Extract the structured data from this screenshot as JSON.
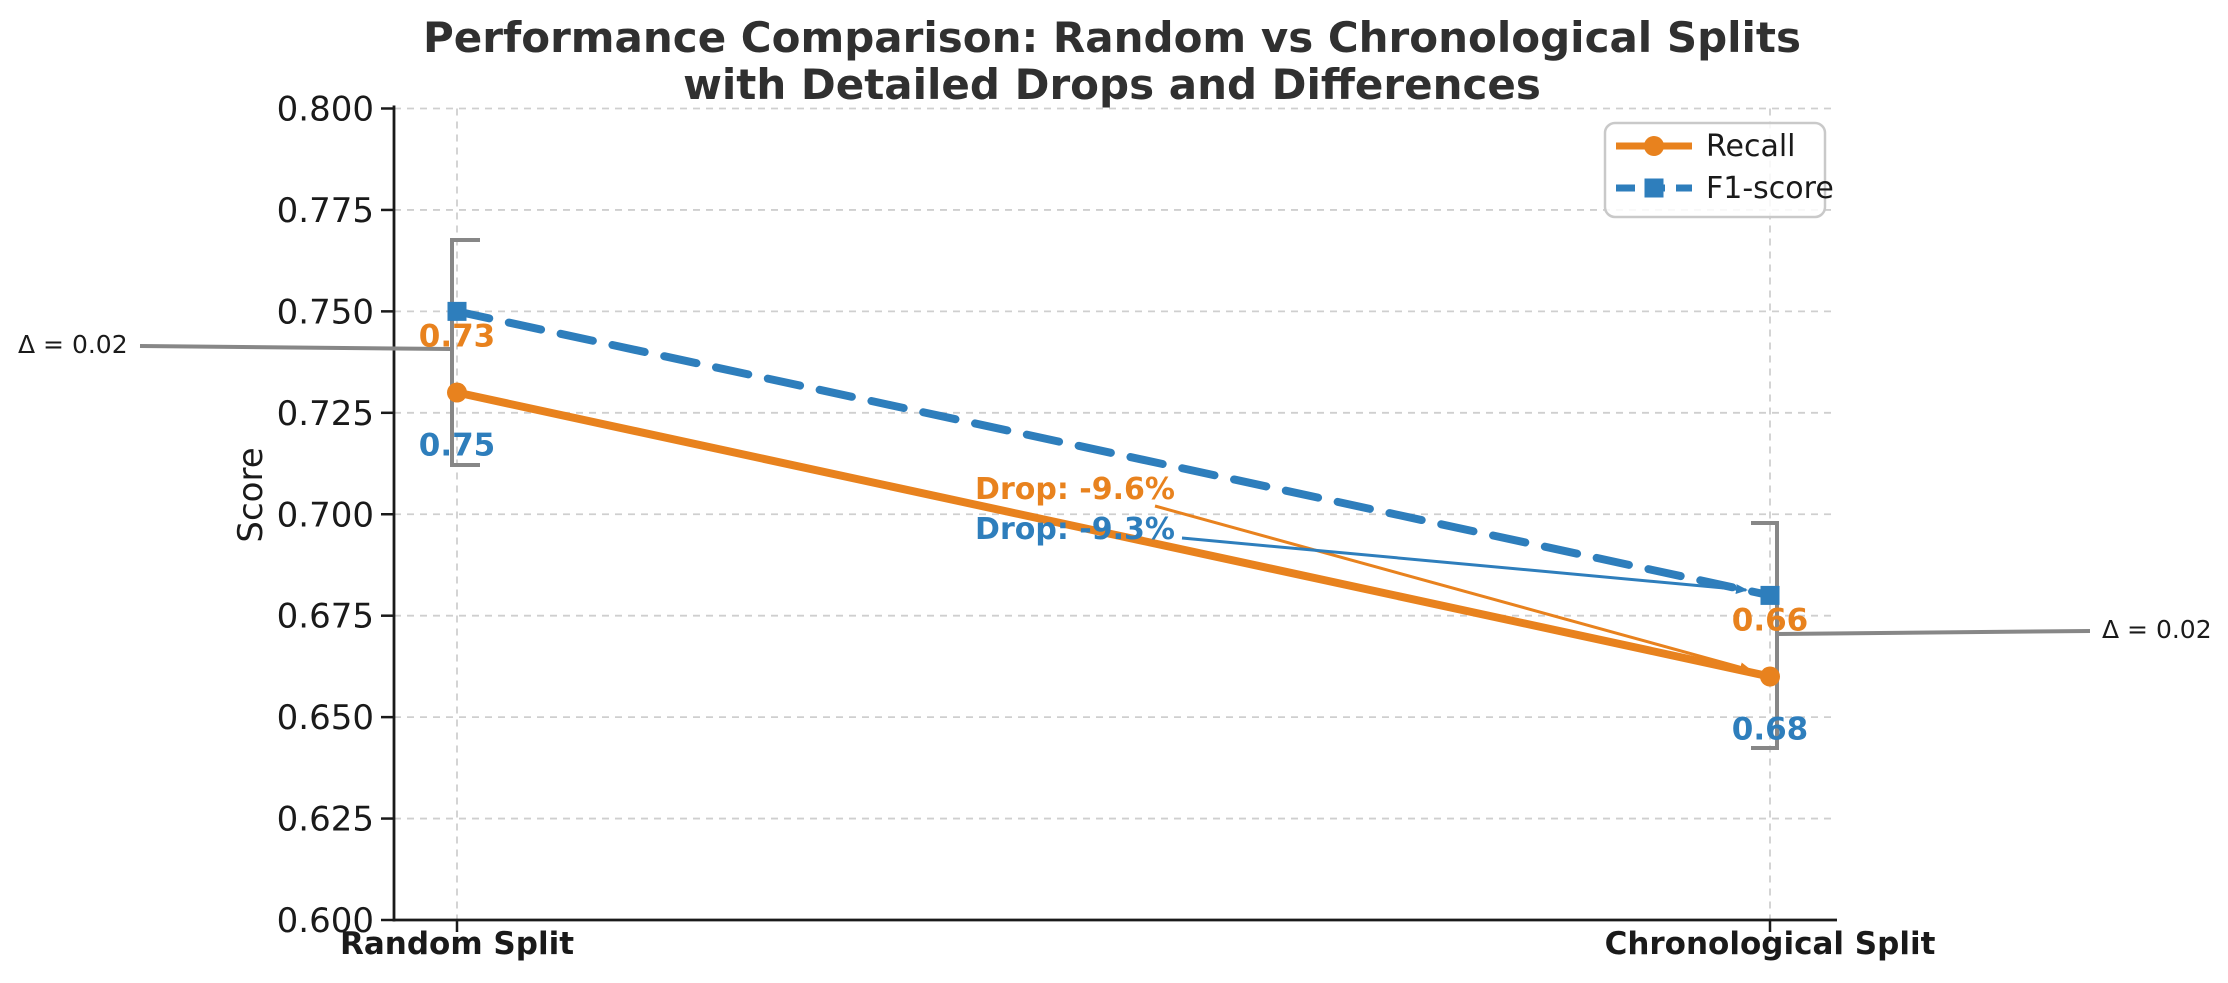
{
  "title": {
    "line1": "Performance Comparison: Random vs Chronological Splits",
    "line2": "with Detailed Drops and Differences"
  },
  "y_axis": {
    "label": "Score",
    "ticks": [
      {
        "value": 0.8,
        "label": "0.800"
      },
      {
        "value": 0.775,
        "label": "0.775"
      },
      {
        "value": 0.75,
        "label": "0.750"
      },
      {
        "value": 0.725,
        "label": "0.725"
      },
      {
        "value": 0.7,
        "label": "0.700"
      },
      {
        "value": 0.675,
        "label": "0.675"
      },
      {
        "value": 0.65,
        "label": "0.650"
      },
      {
        "value": 0.625,
        "label": "0.625"
      },
      {
        "value": 0.6,
        "label": "0.600"
      }
    ]
  },
  "x_axis": {
    "categories": [
      "Random Split",
      "Chronological Split"
    ]
  },
  "legend": {
    "items": [
      {
        "label": "Recall"
      },
      {
        "label": "F1-score"
      }
    ]
  },
  "colors": {
    "recall": "#E8821E",
    "f1_score": "#2E7EBC",
    "annotation_gray": "#878787",
    "grid": "#CFCFCF",
    "spine": "#1A1A1A",
    "title": "#303030"
  },
  "annotations": {
    "drops": [
      {
        "series": "Recall",
        "label": "Drop: -9.6%"
      },
      {
        "series": "F1-score",
        "label": "Drop: -9.3%"
      }
    ],
    "deltas": [
      {
        "side": "left",
        "label": "Δ = 0.02"
      },
      {
        "side": "right",
        "label": "Δ = 0.02"
      }
    ],
    "point_labels": [
      {
        "series": "Recall",
        "labels": [
          "0.73",
          "0.66"
        ]
      },
      {
        "series": "F1-score",
        "labels": [
          "0.75",
          "0.68"
        ]
      }
    ]
  },
  "chart_data": {
    "type": "line",
    "categories": [
      "Random Split",
      "Chronological Split"
    ],
    "series": [
      {
        "name": "Recall",
        "values": [
          0.73,
          0.66
        ],
        "color": "#E8821E",
        "line_style": "solid",
        "marker": "circle",
        "drop_percent": -9.6
      },
      {
        "name": "F1-score",
        "values": [
          0.75,
          0.68
        ],
        "color": "#2E7EBC",
        "line_style": "dashed",
        "marker": "square",
        "drop_percent": -9.3
      }
    ],
    "title": "Performance Comparison: Random vs Chronological Splits with Detailed Drops and Differences",
    "xlabel": "",
    "ylabel": "Score",
    "ylim": [
      0.6,
      0.8
    ],
    "ytick_step": 0.025,
    "grid": true,
    "legend_position": "upper right",
    "delta_between_series": 0.02
  }
}
